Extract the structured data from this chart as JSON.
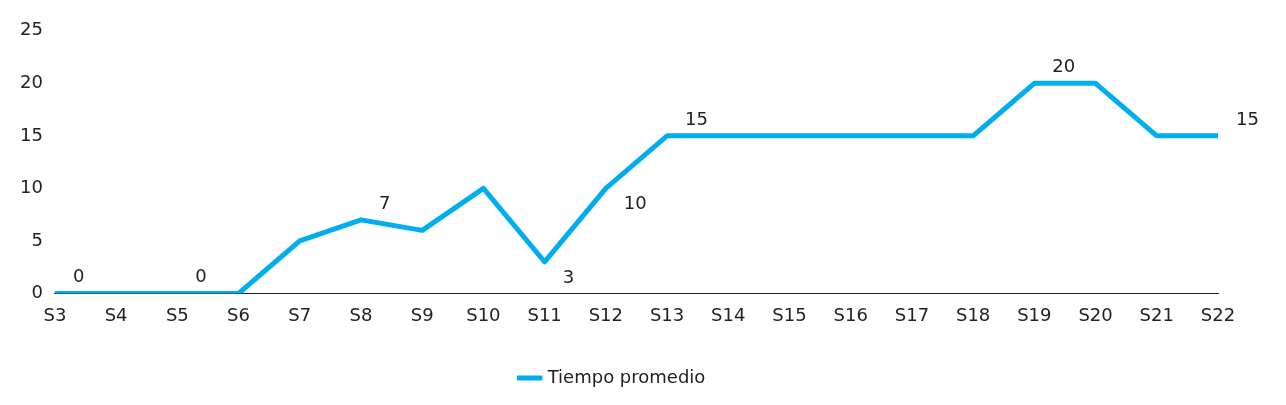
{
  "chart_data": {
    "type": "line",
    "categories": [
      "S3",
      "S4",
      "S5",
      "S6",
      "S7",
      "S8",
      "S9",
      "S10",
      "S11",
      "S12",
      "S13",
      "S14",
      "S15",
      "S16",
      "S17",
      "S18",
      "S19",
      "S20",
      "S21",
      "S22"
    ],
    "series": [
      {
        "name": "Tiempo promedio",
        "color": "#00aeef",
        "values": [
          0,
          0,
          0,
          0,
          5,
          7,
          6,
          10,
          3,
          10,
          15,
          15,
          15,
          15,
          15,
          15,
          20,
          20,
          15,
          15
        ],
        "value_labels": [
          "0",
          null,
          "0",
          null,
          null,
          "7",
          null,
          null,
          "3",
          "10",
          "15",
          null,
          null,
          null,
          null,
          null,
          "20",
          null,
          null,
          "15"
        ]
      }
    ],
    "ylim": [
      0,
      25
    ],
    "yticks": [
      0,
      5,
      10,
      15,
      20,
      25
    ],
    "grid": false,
    "legend": "bottom",
    "marker": "none",
    "line_style": "solid"
  }
}
